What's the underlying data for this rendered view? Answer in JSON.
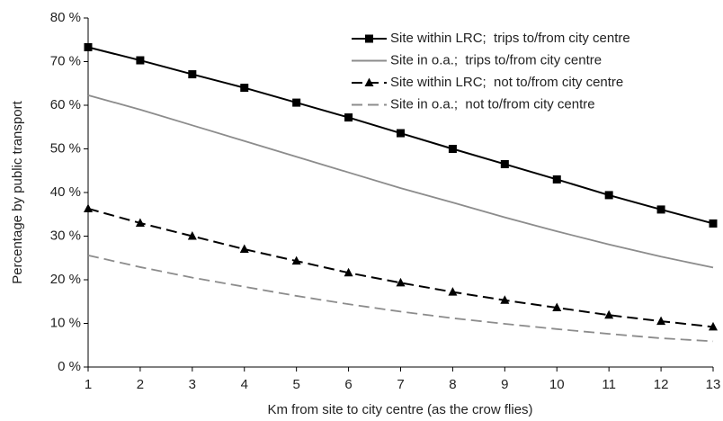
{
  "chart_data": {
    "type": "line",
    "y_label": "Percentage by public transport",
    "x_label": "Km from site to city centre (as the crow flies)",
    "x": [
      1,
      2,
      3,
      4,
      5,
      6,
      7,
      8,
      9,
      10,
      11,
      12,
      13
    ],
    "xlim": [
      1,
      13
    ],
    "xticks": [
      1,
      2,
      3,
      4,
      5,
      6,
      7,
      8,
      9,
      10,
      11,
      12,
      13
    ],
    "ylim": [
      0,
      80
    ],
    "yticks": [
      {
        "value": 0,
        "label": "0 %"
      },
      {
        "value": 10,
        "label": "10 %"
      },
      {
        "value": 20,
        "label": "20 %"
      },
      {
        "value": 30,
        "label": "30 %"
      },
      {
        "value": 40,
        "label": "40 %"
      },
      {
        "value": 50,
        "label": "50 %"
      },
      {
        "value": 60,
        "label": "60 %"
      },
      {
        "value": 70,
        "label": "70 %"
      },
      {
        "value": 80,
        "label": "80 %"
      }
    ],
    "grid": false,
    "legend": "upper right",
    "series": [
      {
        "name": "Site within LRC;  trips to/from city centre",
        "color": "#000000",
        "marker": "square",
        "dashed": false,
        "values": [
          73.3,
          70.3,
          67.1,
          64.0,
          60.6,
          57.2,
          53.6,
          50.0,
          46.5,
          43.0,
          39.4,
          36.1,
          32.9
        ]
      },
      {
        "name": "Site in o.a.;  trips to/from city centre",
        "color": "#8c8c8c",
        "marker": "none",
        "dashed": false,
        "values": [
          62.3,
          59.0,
          55.4,
          51.8,
          48.2,
          44.6,
          41.0,
          37.7,
          34.3,
          31.1,
          28.1,
          25.3,
          22.8
        ]
      },
      {
        "name": "Site within LRC;  not to/from city centre",
        "color": "#000000",
        "marker": "triangle",
        "dashed": true,
        "values": [
          36.3,
          33.0,
          30.0,
          27.0,
          24.3,
          21.6,
          19.3,
          17.2,
          15.3,
          13.6,
          11.9,
          10.5,
          9.2
        ]
      },
      {
        "name": "Site in o.a.;  not to/from city centre",
        "color": "#8c8c8c",
        "marker": "none",
        "dashed": true,
        "values": [
          25.6,
          22.9,
          20.5,
          18.4,
          16.3,
          14.4,
          12.7,
          11.2,
          9.9,
          8.7,
          7.6,
          6.6,
          5.9
        ]
      }
    ]
  }
}
